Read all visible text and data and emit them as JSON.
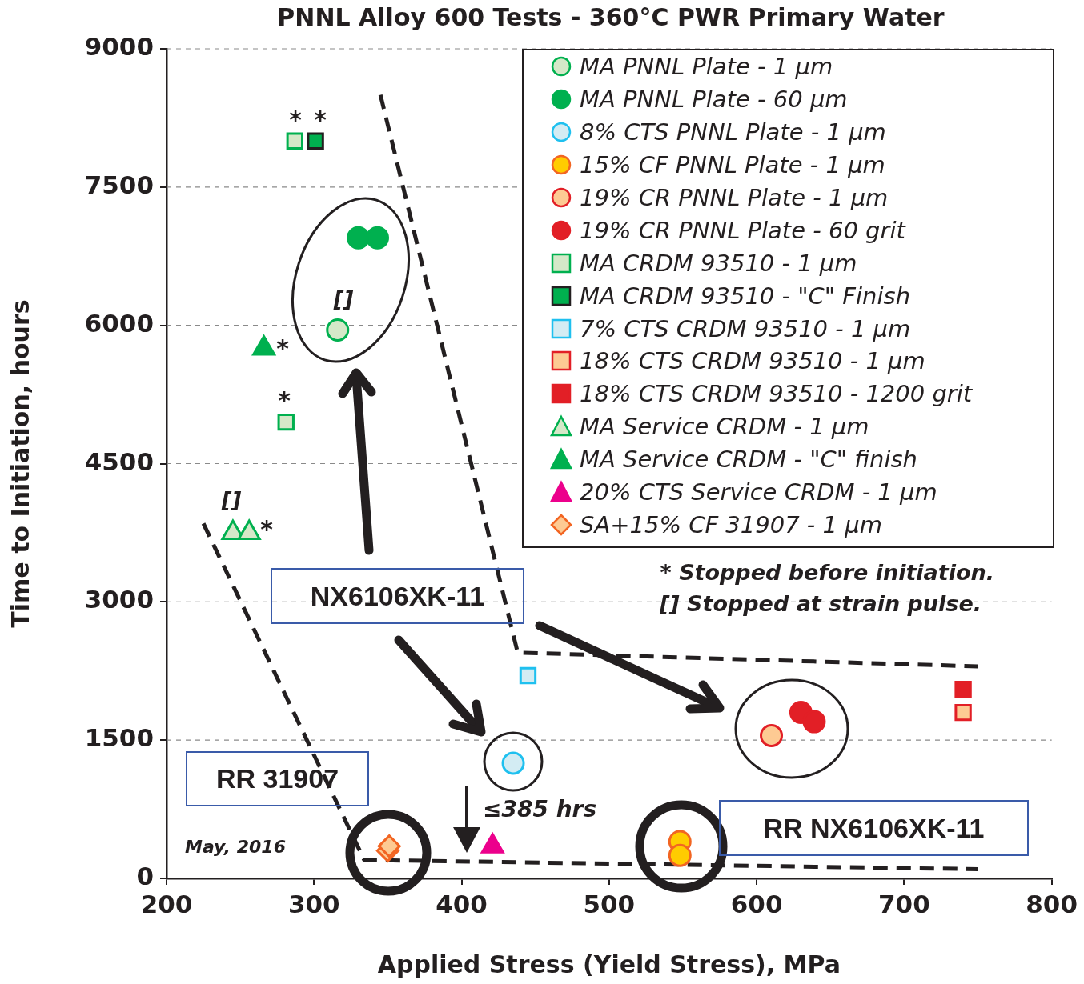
{
  "chart_data": {
    "type": "scatter",
    "title": "PNNL Alloy 600 Tests - 360°C PWR Primary Water",
    "xlabel": "Applied Stress (Yield Stress), MPa",
    "ylabel": "Time to Initiation, hours",
    "xlim": [
      200,
      800
    ],
    "xticks": [
      200,
      300,
      400,
      500,
      600,
      700,
      800
    ],
    "ylim": [
      0,
      9000
    ],
    "yticks": [
      0,
      1500,
      3000,
      4500,
      6000,
      7500,
      9000
    ],
    "grid": "y",
    "legend": "top right",
    "annotations": [
      "* Stopped before initiation.",
      "[] Stopped at strain pulse.",
      "NX6106XK-11",
      "RR 31907",
      "RR NX6106XK-11",
      "≤385 hrs",
      "May, 2016",
      "*",
      "*",
      "*",
      "*",
      "*",
      "[]",
      "[]"
    ],
    "series": [
      {
        "name": "MA PNNL Plate - 1 µm",
        "color": "#d5e8c8",
        "marker": "circle",
        "x": [
          316
        ],
        "values": [
          5950
        ]
      },
      {
        "name": "MA PNNL Plate - 60 µm",
        "color": "#00b04f",
        "marker": "circle",
        "x": [
          330,
          343
        ],
        "values": [
          6950,
          6950
        ]
      },
      {
        "name": "8% CTS PNNL Plate - 1 µm",
        "color": "#d3ecf3",
        "marker": "circle",
        "x": [
          435
        ],
        "values": [
          1250
        ]
      },
      {
        "name": "15% CF PNNL Plate - 1 µm",
        "color": "#ffcc00",
        "marker": "circle",
        "x": [
          548,
          548
        ],
        "values": [
          400,
          250
        ]
      },
      {
        "name": "19% CR PNNL Plate - 1 µm",
        "color": "#fdca93",
        "marker": "circle",
        "x": [
          610
        ],
        "values": [
          1550
        ]
      },
      {
        "name": "19% CR PNNL Plate - 60 grit",
        "color": "#e21f26",
        "marker": "circle",
        "x": [
          630,
          639
        ],
        "values": [
          1800,
          1700
        ]
      },
      {
        "name": "MA CRDM 93510 - 1 µm",
        "color": "#d5e8c8",
        "marker": "square",
        "x": [
          287,
          281
        ],
        "values": [
          8000,
          4950
        ]
      },
      {
        "name": "MA CRDM 93510 - \"C\" Finish",
        "color": "#00b04f",
        "marker": "square",
        "x": [
          301
        ],
        "values": [
          8000
        ]
      },
      {
        "name": "7% CTS CRDM 93510 - 1 µm",
        "color": "#d3ecf3",
        "marker": "square",
        "x": [
          445
        ],
        "values": [
          2200
        ]
      },
      {
        "name": "18% CTS CRDM 93510 - 1 µm",
        "color": "#fdca93",
        "marker": "square",
        "x": [
          740
        ],
        "values": [
          1800
        ]
      },
      {
        "name": "18% CTS CRDM 93510 - 1200 grit",
        "color": "#e21f26",
        "marker": "square",
        "x": [
          740
        ],
        "values": [
          2050
        ]
      },
      {
        "name": "MA Service CRDM - 1 µm",
        "color": "#d5e8c8",
        "marker": "triangle",
        "x": [
          245,
          256
        ],
        "values": [
          3750,
          3750
        ]
      },
      {
        "name": "MA Service CRDM - \"C\" finish",
        "color": "#00b04f",
        "marker": "triangle",
        "x": [
          266
        ],
        "values": [
          5750
        ]
      },
      {
        "name": "20% CTS Service CRDM - 1 µm",
        "color": "#ec008c",
        "marker": "triangle",
        "x": [
          421
        ],
        "values": [
          350
        ]
      },
      {
        "name": "SA+15% CF 31907 - 1 µm",
        "color": "#fdca93",
        "marker": "diamond",
        "x": [
          350,
          351
        ],
        "values": [
          300,
          350
        ]
      },
      {
        "type": "line",
        "color": "#231f20",
        "line_style": "dashed",
        "marker": "none",
        "x": [
          345,
          438,
          750
        ],
        "values": [
          8500,
          2450,
          2300
        ]
      },
      {
        "type": "line",
        "color": "#231f20",
        "line_style": "dashed",
        "marker": "none",
        "x": [
          225,
          334,
          750
        ],
        "values": [
          3850,
          200,
          100
        ]
      }
    ]
  }
}
